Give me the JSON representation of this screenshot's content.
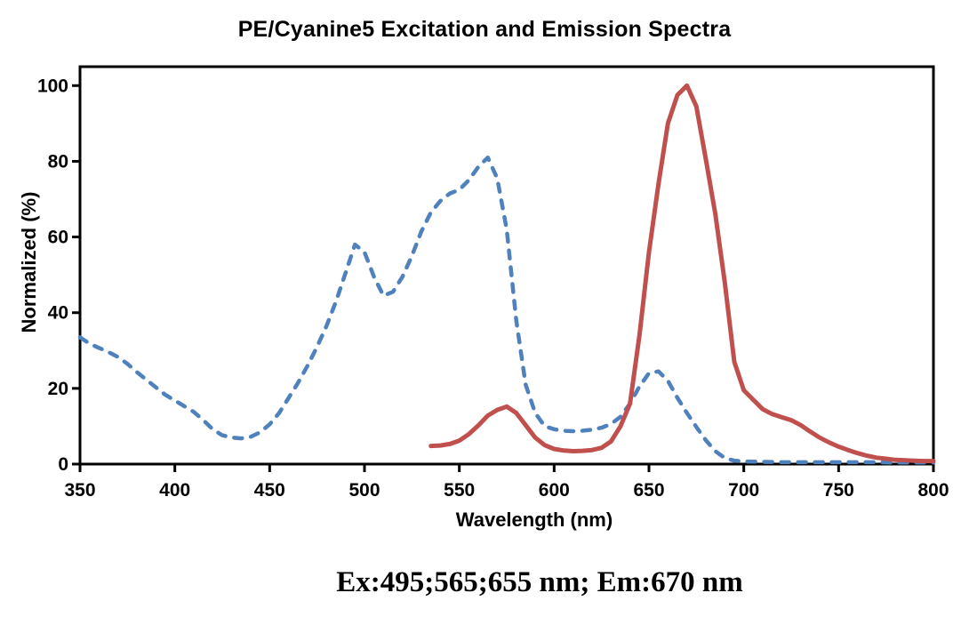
{
  "chart_data": {
    "type": "line",
    "title": "PE/Cyanine5 Excitation and Emission Spectra",
    "xlabel": "Wavelength (nm)",
    "ylabel": "Normalized (%)",
    "annotation": "Ex:495;565;655 nm; Em:670 nm",
    "xlim": [
      350,
      800
    ],
    "ylim": [
      0,
      105
    ],
    "xticks": [
      350,
      400,
      450,
      500,
      550,
      600,
      650,
      700,
      750,
      800
    ],
    "yticks": [
      0,
      20,
      40,
      60,
      80,
      100
    ],
    "grid": false,
    "legend": "none",
    "axis_color": "#000000",
    "ex_peaks_nm": [
      495,
      565,
      655
    ],
    "em_peak_nm": 670,
    "series": [
      {
        "id": "excitation",
        "name": "Excitation (dashed)",
        "color": "#4F81BD",
        "dashed": true,
        "x": [
          350,
          355,
          360,
          365,
          370,
          375,
          380,
          385,
          390,
          395,
          400,
          405,
          410,
          415,
          420,
          425,
          430,
          435,
          440,
          445,
          450,
          455,
          460,
          465,
          470,
          475,
          480,
          485,
          490,
          495,
          500,
          505,
          510,
          515,
          520,
          525,
          530,
          535,
          540,
          545,
          550,
          555,
          560,
          565,
          570,
          575,
          580,
          585,
          590,
          595,
          600,
          605,
          610,
          615,
          620,
          625,
          630,
          635,
          640,
          645,
          650,
          655,
          660,
          665,
          670,
          675,
          680,
          685,
          690,
          695,
          700,
          710,
          720,
          730,
          740,
          750,
          760,
          770,
          780,
          790,
          800
        ],
        "y": [
          33.5,
          31.8,
          30.7,
          29.6,
          28.3,
          26.5,
          24.3,
          22.3,
          20.3,
          18.3,
          16.8,
          15.3,
          13.8,
          11.6,
          9.2,
          7.6,
          7.0,
          6.8,
          7.2,
          8.4,
          10.5,
          13.5,
          17.5,
          21.5,
          26.0,
          31.0,
          36.5,
          43.0,
          50.5,
          58.0,
          56.0,
          49.5,
          44.5,
          45.5,
          49.5,
          55.0,
          61.5,
          66.5,
          69.5,
          71.5,
          72.5,
          75.0,
          78.5,
          81.0,
          75.5,
          62.0,
          38.0,
          21.0,
          13.5,
          10.0,
          9.2,
          8.8,
          8.7,
          8.8,
          9.1,
          9.6,
          10.6,
          12.5,
          16.0,
          20.5,
          24.0,
          24.5,
          22.0,
          17.5,
          13.5,
          9.8,
          6.3,
          3.4,
          1.6,
          0.9,
          0.7,
          0.6,
          0.5,
          0.5,
          0.5,
          0.5,
          0.5,
          0.5,
          0.4,
          0.4,
          0.4
        ]
      },
      {
        "id": "emission",
        "name": "Emission (solid)",
        "color": "#C0504D",
        "dashed": false,
        "x": [
          535,
          540,
          545,
          550,
          555,
          560,
          565,
          570,
          575,
          580,
          585,
          590,
          595,
          600,
          605,
          610,
          615,
          620,
          625,
          630,
          635,
          640,
          645,
          650,
          655,
          660,
          665,
          670,
          675,
          680,
          685,
          690,
          695,
          700,
          705,
          710,
          715,
          720,
          725,
          730,
          735,
          740,
          745,
          750,
          755,
          760,
          765,
          770,
          775,
          780,
          785,
          790,
          795,
          800
        ],
        "y": [
          4.8,
          4.9,
          5.3,
          6.2,
          7.9,
          10.2,
          12.8,
          14.3,
          15.2,
          13.5,
          10.3,
          7.0,
          5.0,
          4.0,
          3.6,
          3.4,
          3.5,
          3.7,
          4.3,
          6.0,
          10.0,
          16.0,
          34.0,
          56.0,
          74.0,
          90.0,
          97.5,
          100.0,
          94.5,
          80.5,
          66.0,
          48.0,
          27.0,
          19.5,
          17.0,
          14.5,
          13.2,
          12.4,
          11.6,
          10.3,
          8.6,
          7.0,
          5.7,
          4.6,
          3.7,
          2.9,
          2.2,
          1.7,
          1.4,
          1.1,
          1.0,
          0.9,
          0.8,
          0.8
        ]
      }
    ]
  }
}
